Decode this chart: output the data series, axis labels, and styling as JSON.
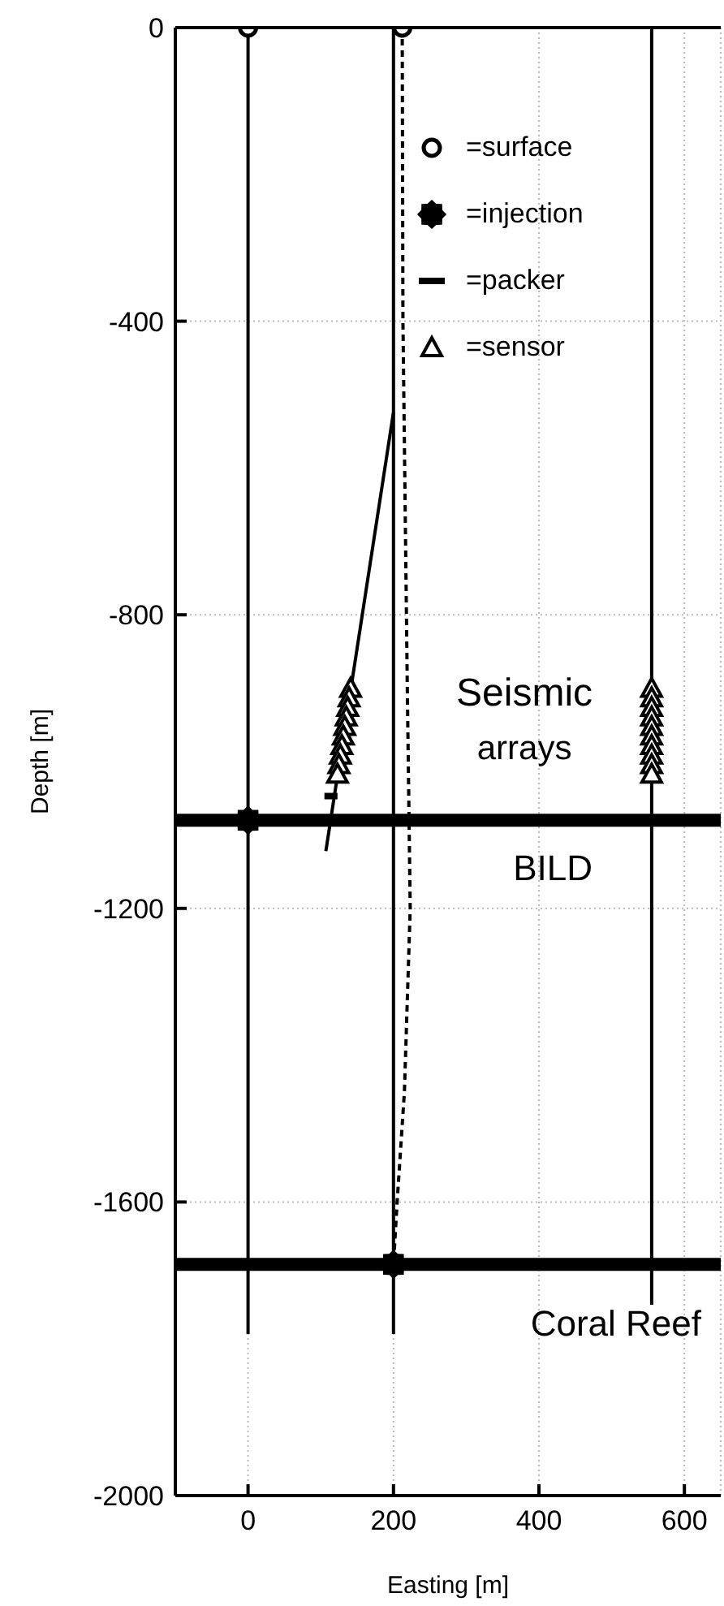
{
  "chart_data": {
    "type": "line",
    "xlabel": "Easting [m]",
    "ylabel": "Depth [m]",
    "xlim": [
      -100,
      650
    ],
    "xticks": [
      0,
      200,
      400,
      600
    ],
    "ylim": [
      -2000,
      0
    ],
    "yticks": [
      -2000,
      -1600,
      -1200,
      -800,
      -400,
      0
    ],
    "grid": true,
    "legend": "top right",
    "series": [
      {
        "color": "#000000",
        "line_style": "solid",
        "x": [
          0,
          0
        ],
        "values": [
          0,
          -1780
        ]
      },
      {
        "color": "#000000",
        "line_style": "solid",
        "x": [
          200,
          200
        ],
        "values": [
          0,
          -1780
        ]
      },
      {
        "color": "#000000",
        "line_style": "solid",
        "x": [
          200,
          107
        ],
        "values": [
          -524,
          -1122
        ]
      },
      {
        "color": "#000000",
        "line_style": "dashed",
        "x": [
          212,
          213,
          219,
          223,
          215,
          205,
          200
        ],
        "values": [
          0,
          -400,
          -900,
          -1200,
          -1450,
          -1600,
          -1685
        ]
      },
      {
        "color": "#000000",
        "line_style": "solid",
        "x": [
          555,
          555
        ],
        "values": [
          0,
          -1740
        ]
      },
      {
        "type": "scatter",
        "name": "=surface",
        "color": "#000000",
        "marker": "circle",
        "x": [
          0,
          212
        ],
        "values": [
          0,
          0
        ]
      },
      {
        "type": "scatter",
        "name": "=injection",
        "color": "#000000",
        "marker": "star",
        "x": [
          0,
          200
        ],
        "values": [
          -1080,
          -1685
        ]
      },
      {
        "name": "=packer",
        "color": "#000000",
        "line_style": "solid",
        "x": [
          105,
          123
        ],
        "values": [
          -1047,
          -1047
        ]
      },
      {
        "type": "scatter",
        "name": "=sensor",
        "color": "#000000",
        "marker": "triangle",
        "x": [
          141,
          139,
          137,
          135,
          133,
          131,
          129,
          127,
          125,
          123,
          555,
          555,
          555,
          555,
          555,
          555,
          555,
          555,
          555,
          555
        ],
        "values": [
          -900,
          -913,
          -926,
          -939,
          -952,
          -965,
          -978,
          -991,
          -1004,
          -1017,
          -900,
          -913,
          -926,
          -939,
          -952,
          -965,
          -978,
          -991,
          -1004,
          -1017
        ]
      }
    ],
    "ref_lines": [
      {
        "axis": "y",
        "value": -1080,
        "label": "BILD",
        "color": "#000000"
      },
      {
        "axis": "y",
        "value": -1685,
        "label": "Coral Reef",
        "color": "#000000"
      }
    ],
    "annotations": [
      "Seismic",
      "arrays"
    ]
  }
}
